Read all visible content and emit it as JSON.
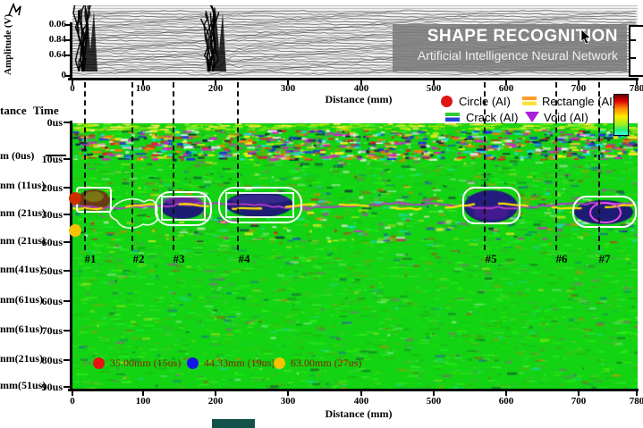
{
  "banner": {
    "title": "SHAPE RECOGNITION",
    "subtitle": "Artificial Intelligence Neural Network"
  },
  "top_chart": {
    "ylabel": "Amplitude (V)",
    "yticks": [
      "0.06",
      "0.84",
      "0.64",
      "0"
    ],
    "xlabel": "Distance (mm)",
    "xticks": [
      "0",
      "100",
      "200",
      "300",
      "400",
      "500",
      "600",
      "700",
      "780"
    ]
  },
  "ai_legend": {
    "circle": "Circle (AI)",
    "rectangle": "Rectangle (AI)",
    "crack": "Crack (AI)",
    "void": "Void (AI)"
  },
  "left_axis": {
    "distance_header": "tance",
    "time_header": "Time",
    "rows": [
      {
        "distance": "",
        "time": "0us"
      },
      {
        "distance": "m (0us)",
        "time": "10us"
      },
      {
        "distance": "nm (11us)",
        "time": "20us"
      },
      {
        "distance": "nm (21us)",
        "time": "30us"
      },
      {
        "distance": "nm (21us)",
        "time": "60us"
      },
      {
        "distance": "nm(41us)",
        "time": "50us"
      },
      {
        "distance": "nm(61us)",
        "time": "60us"
      },
      {
        "distance": "nm(61us)",
        "time": "70us"
      },
      {
        "distance": "nm(21us)",
        "time": "80us"
      },
      {
        "distance": "mm(51us)",
        "time": "90us"
      }
    ]
  },
  "bscan": {
    "xlabel": "Distance (mm)",
    "xticks": [
      "0",
      "100",
      "200",
      "300",
      "400",
      "500",
      "600",
      "700",
      "780"
    ],
    "annotations": [
      "#1",
      "#2",
      "#3",
      "#4",
      "#5",
      "#6",
      "#7"
    ],
    "depth_legend": [
      {
        "label": "35.00mm (15us)",
        "color": "#e81212"
      },
      {
        "label": "44.33mm (19us)",
        "color": "#1515e8"
      },
      {
        "label": "63.00mm (27us)",
        "color": "#f5c400"
      }
    ]
  },
  "colors": {
    "heatmap_base_green": "#12d412",
    "defect_navy": "#1c1c74",
    "outline_white": "#ffffff",
    "void_magenta": "#e84ae8",
    "wavy_line_purple": "#b43ec8",
    "wavy_line_yellow": "#ffe400",
    "marker_red": "#cc2e00",
    "marker_yellow": "#f5c400",
    "legend_circle_red": "#dd1515",
    "legend_rect_orange": "#ff9a2a",
    "legend_rect_yellow": "#ffe23a",
    "legend_crack_green": "#2ecc33",
    "legend_crack_blue": "#2742d6",
    "legend_void_purple": "#a820d8"
  },
  "chart_data": [
    {
      "type": "line",
      "title": "SHAPE RECOGNITION — Artificial Intelligence Neural Network",
      "xlabel": "Distance (mm)",
      "ylabel": "Amplitude (V)",
      "xlim": [
        0,
        780
      ],
      "xticks": [
        0,
        100,
        200,
        300,
        400,
        500,
        600,
        700,
        780
      ],
      "ytick_labels": [
        "0.06",
        "0.84",
        "0.64",
        "0"
      ],
      "description": "Dense stack of overlapping A-scan waveform traces (waterfall). Large black amplitude spike clusters near x≈20mm and x≈200mm reaching the top of the panel; smaller disturbances near x≈100mm and x≈560mm.",
      "legend_position": "below-axis-right",
      "grid": false
    },
    {
      "type": "heatmap",
      "xlabel": "Distance (mm)",
      "xlim": [
        0,
        780
      ],
      "xticks": [
        0,
        100,
        200,
        300,
        400,
        500,
        600,
        700,
        780
      ],
      "time_axis_ticks": [
        "0us",
        "10us",
        "20us",
        "30us",
        "60us",
        "50us",
        "60us",
        "70us",
        "80us",
        "90us"
      ],
      "description": "B-scan color map, mostly bright green with a dense multicolor noise band near 2-12us and a defect band near 22-34us crossed by a wavy purple/yellow interface line.",
      "annotations": [
        {
          "label": "#1",
          "x_mm": 25
        },
        {
          "label": "#2",
          "x_mm": 91
        },
        {
          "label": "#3",
          "x_mm": 147
        },
        {
          "label": "#4",
          "x_mm": 237
        },
        {
          "label": "#5",
          "x_mm": 578
        },
        {
          "label": "#6",
          "x_mm": 675
        },
        {
          "label": "#7",
          "x_mm": 735
        }
      ],
      "dashed_lines_x_mm": [
        16,
        82,
        138,
        227,
        568,
        667,
        726
      ],
      "detected_regions": [
        {
          "id": "#1",
          "shape": "rectangle-outline",
          "x_mm": [
            6,
            53
          ],
          "time_us": [
            23,
            30
          ]
        },
        {
          "id": "#2",
          "shape": "irregular-outline",
          "x_mm": [
            49,
            120
          ],
          "time_us": [
            25,
            37
          ]
        },
        {
          "id": "#3",
          "shape": "rounded-outline-with-inner-rect",
          "x_mm": [
            115,
            191
          ],
          "time_us": [
            24,
            35
          ]
        },
        {
          "id": "#4",
          "shape": "rounded-outline-with-inner-rect",
          "x_mm": [
            202,
            316
          ],
          "time_us": [
            22,
            34
          ]
        },
        {
          "id": "#5",
          "shape": "rounded-outline",
          "x_mm": [
            539,
            617
          ],
          "time_us": [
            22,
            34
          ]
        },
        {
          "id": "#7",
          "shape": "rounded-outline-with-magenta-void",
          "x_mm": [
            691,
            776
          ],
          "time_us": [
            25,
            35
          ]
        }
      ],
      "depth_markers": [
        {
          "label": "35.00mm (15us)",
          "color": "red"
        },
        {
          "label": "44.33mm (19us)",
          "color": "blue"
        },
        {
          "label": "63.00mm (27us)",
          "color": "yellow"
        }
      ],
      "legend_position": "inside-bottom-left"
    }
  ]
}
